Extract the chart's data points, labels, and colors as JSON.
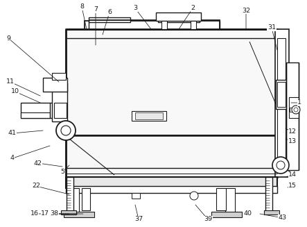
{
  "bg_color": "#ffffff",
  "line_color": "#1a1a1a",
  "annotations": [
    [
      "1",
      432,
      148,
      420,
      148
    ],
    [
      "2",
      278,
      12,
      258,
      42
    ],
    [
      "3",
      195,
      12,
      218,
      42
    ],
    [
      "4",
      18,
      228,
      72,
      210
    ],
    [
      "5",
      90,
      248,
      100,
      238
    ],
    [
      "6",
      158,
      18,
      148,
      50
    ],
    [
      "7",
      138,
      14,
      138,
      65
    ],
    [
      "8",
      118,
      10,
      125,
      42
    ],
    [
      "9",
      12,
      55,
      85,
      118
    ],
    [
      "10",
      22,
      132,
      58,
      148
    ],
    [
      "11",
      15,
      118,
      58,
      138
    ],
    [
      "12",
      422,
      190,
      412,
      185
    ],
    [
      "13",
      422,
      204,
      412,
      200
    ],
    [
      "14",
      422,
      252,
      412,
      255
    ],
    [
      "15",
      422,
      268,
      415,
      270
    ],
    [
      "16",
      50,
      308,
      100,
      308
    ],
    [
      "17",
      65,
      308,
      112,
      308
    ],
    [
      "22",
      52,
      268,
      100,
      280
    ],
    [
      "31",
      392,
      40,
      400,
      72
    ],
    [
      "32",
      355,
      15,
      355,
      42
    ],
    [
      "37",
      200,
      316,
      195,
      295
    ],
    [
      "38",
      78,
      308,
      120,
      308
    ],
    [
      "39",
      300,
      316,
      282,
      295
    ],
    [
      "40",
      358,
      308,
      358,
      308
    ],
    [
      "41",
      18,
      192,
      62,
      188
    ],
    [
      "42",
      55,
      235,
      90,
      240
    ],
    [
      "43",
      408,
      314,
      375,
      308
    ]
  ]
}
